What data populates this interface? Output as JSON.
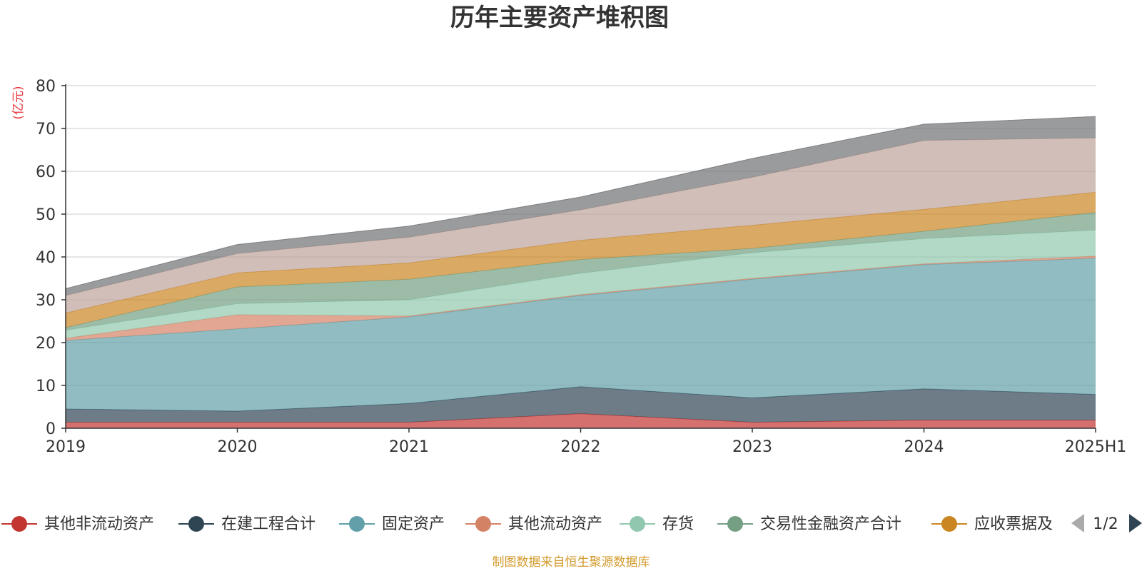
{
  "chart_data": {
    "type": "area",
    "title": "历年主要资产堆积图",
    "unit_label": "(亿元)",
    "x": [
      "2019",
      "2020",
      "2021",
      "2022",
      "2023",
      "2024",
      "2025H1"
    ],
    "yticks": [
      "0",
      "10",
      "20",
      "30",
      "40",
      "50",
      "60",
      "70",
      "80"
    ],
    "ylim": [
      0,
      80
    ],
    "stacked": true,
    "grid": true,
    "legend_position": "bottom",
    "series": [
      {
        "name": "其他非流动资产",
        "color": "#c23531",
        "values": [
          1.4,
          1.4,
          1.4,
          3.4,
          1.4,
          1.9,
          1.9
        ]
      },
      {
        "name": "在建工程合计",
        "color": "#2f4554",
        "values": [
          3.1,
          2.6,
          4.4,
          6.3,
          5.7,
          7.3,
          6.0
        ]
      },
      {
        "name": "固定资产",
        "color": "#61a0a8",
        "values": [
          16.0,
          19.2,
          20.2,
          21.3,
          27.7,
          29.0,
          31.8
        ]
      },
      {
        "name": "其他流动资产",
        "color": "#d48265",
        "values": [
          0.5,
          3.3,
          0.2,
          0.2,
          0.2,
          0.2,
          0.5
        ]
      },
      {
        "name": "存货",
        "color": "#91c7ae",
        "values": [
          1.9,
          2.6,
          3.8,
          5.0,
          6.0,
          5.9,
          6.1
        ]
      },
      {
        "name": "交易性金融资产合计",
        "color": "#749f83",
        "values": [
          0.6,
          3.9,
          4.8,
          3.2,
          1.0,
          1.7,
          4.1
        ]
      },
      {
        "name": "应收票据及",
        "color": "#ca8622",
        "values": [
          3.4,
          3.3,
          3.8,
          4.5,
          5.4,
          5.1,
          4.7
        ]
      },
      {
        "name": "",
        "color": "#bda29a",
        "values": [
          4.1,
          4.5,
          6.0,
          7.1,
          11.2,
          16.1,
          12.7
        ]
      },
      {
        "name": "",
        "color": "#6e7074",
        "values": [
          1.6,
          2.1,
          2.6,
          3.0,
          4.4,
          3.8,
          5.0
        ]
      }
    ],
    "legend_pager": "1/2",
    "source_note": "制图数据来自恒生聚源数据库"
  }
}
